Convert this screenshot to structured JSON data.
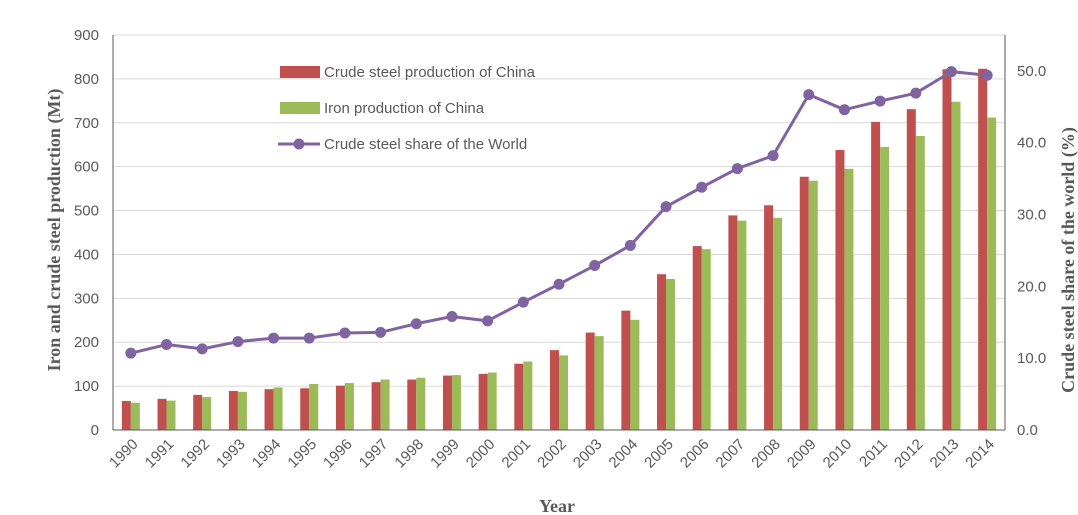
{
  "chart_data": {
    "type": "bar",
    "categories": [
      "1990",
      "1991",
      "1992",
      "1993",
      "1994",
      "1995",
      "1996",
      "1997",
      "1998",
      "1999",
      "2000",
      "2001",
      "2002",
      "2003",
      "2004",
      "2005",
      "2006",
      "2007",
      "2008",
      "2009",
      "2010",
      "2011",
      "2012",
      "2013",
      "2014"
    ],
    "series": [
      {
        "name": "Crude steel production of China",
        "type": "bar",
        "axis": "left",
        "color": "#C0504D",
        "values": [
          66,
          71,
          80,
          89,
          93,
          95,
          101,
          109,
          115,
          124,
          128,
          151,
          182,
          222,
          272,
          355,
          419,
          489,
          512,
          577,
          638,
          702,
          731,
          822,
          823
        ]
      },
      {
        "name": "Iron production of China",
        "type": "bar",
        "axis": "left",
        "color": "#9BBB59",
        "values": [
          62,
          67,
          75,
          87,
          97,
          105,
          107,
          115,
          119,
          125,
          131,
          156,
          170,
          214,
          251,
          344,
          412,
          477,
          483,
          568,
          595,
          645,
          670,
          748,
          712
        ]
      },
      {
        "name": "Crude steel share of the World",
        "type": "line",
        "axis": "right",
        "color": "#8064A2",
        "values": [
          10.7,
          11.9,
          11.3,
          12.3,
          12.8,
          12.8,
          13.5,
          13.6,
          14.8,
          15.8,
          15.2,
          17.8,
          20.3,
          22.9,
          25.7,
          31.1,
          33.8,
          36.4,
          38.2,
          46.7,
          44.6,
          45.8,
          46.9,
          49.9,
          49.4
        ]
      }
    ],
    "xlabel": "Year",
    "ylabel": "Iron and crude steel production (Mt)",
    "y2label": "Crude steel share of the world (%)",
    "ylim": [
      0,
      900
    ],
    "yticks": [
      "0",
      "100",
      "200",
      "300",
      "400",
      "500",
      "600",
      "700",
      "800",
      "900"
    ],
    "y2lim": [
      0,
      55
    ],
    "y2ticks": [
      "0.0",
      "10.0",
      "20.0",
      "30.0",
      "40.0",
      "50.0"
    ],
    "grid": true,
    "legend": "top-center",
    "legend_labels": [
      "Crude steel production of China",
      "Iron production of China",
      "Crude steel share of the World"
    ]
  }
}
